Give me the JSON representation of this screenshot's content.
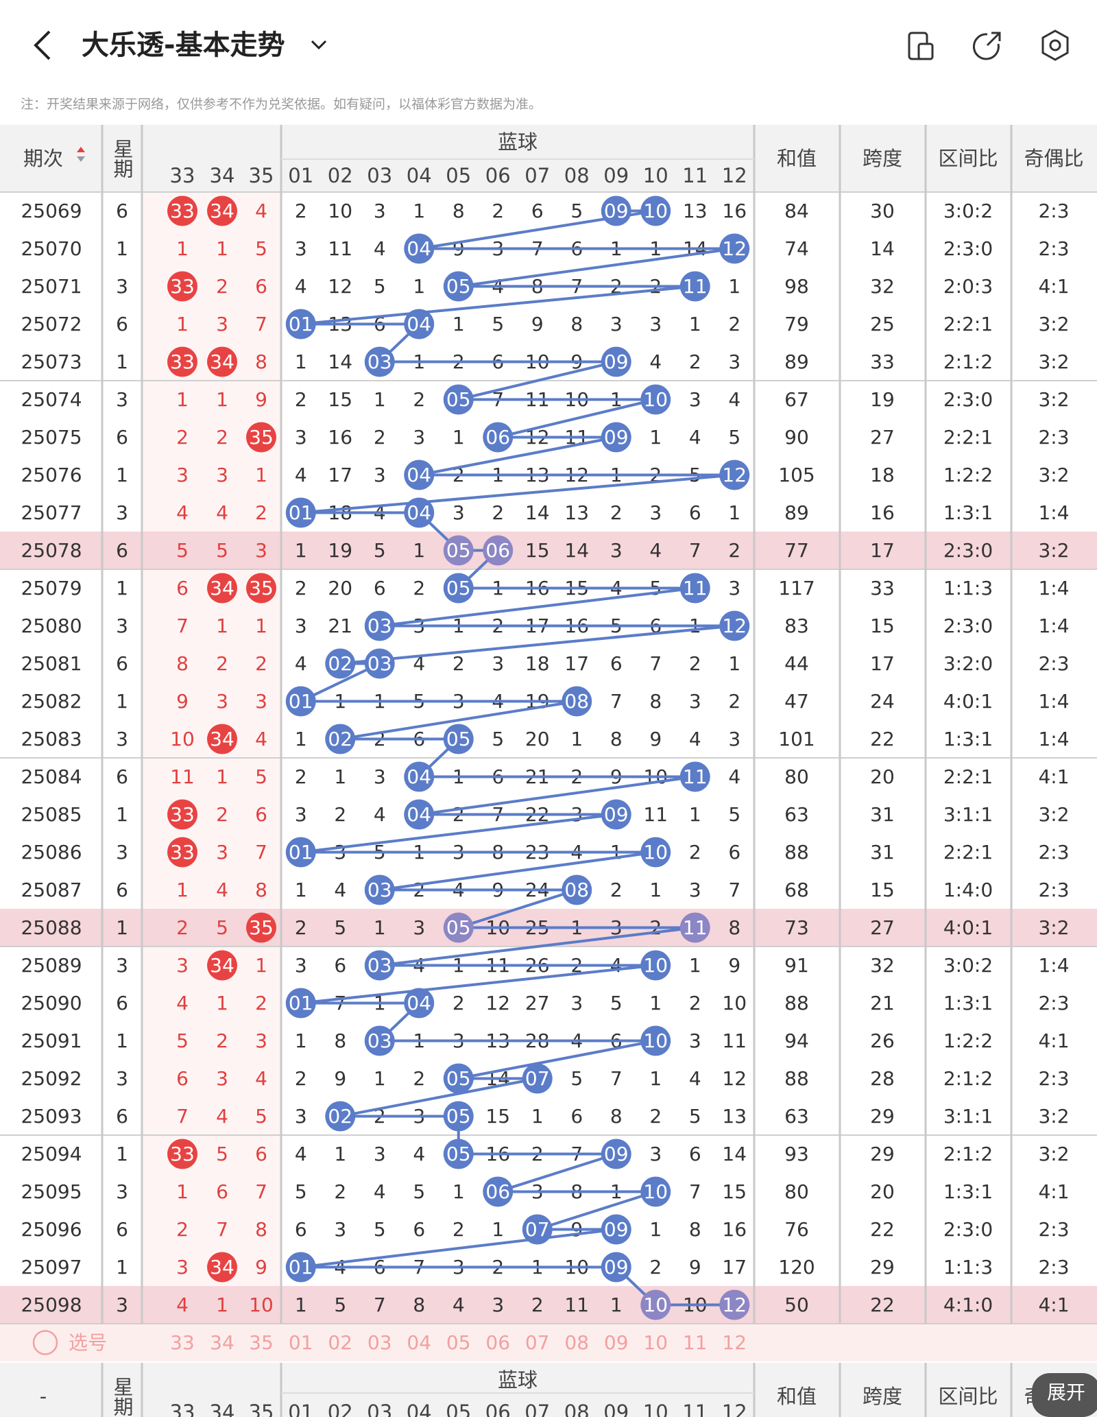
{
  "topbar": {
    "title": "大乐透-基本走势"
  },
  "note": "注：开奖结果来源于网络，仅供参考不作为兑奖依据。如有疑问，以福体彩官方数据为准。",
  "table": {
    "header": {
      "issue": "期次",
      "weekday": "星期",
      "blue_group": "蓝球",
      "red_cols": [
        "33",
        "34",
        "35"
      ],
      "blue_cols": [
        "01",
        "02",
        "03",
        "04",
        "05",
        "06",
        "07",
        "08",
        "09",
        "10",
        "11",
        "12"
      ],
      "sum": "和值",
      "span": "跨度",
      "zone": "区间比",
      "oddeven": "奇偶比"
    },
    "rows": [
      {
        "i": "25069",
        "w": 6,
        "r": [
          null,
          null,
          4
        ],
        "rd": [
          "33",
          "34"
        ],
        "b": [
          2,
          10,
          3,
          1,
          8,
          2,
          6,
          5,
          null,
          null,
          13,
          16
        ],
        "bd": [
          "09",
          "10"
        ],
        "s": 84,
        "sp": 30,
        "z": "3:0:2",
        "o": "2:3"
      },
      {
        "i": "25070",
        "w": 1,
        "r": [
          1,
          1,
          5
        ],
        "rd": [],
        "b": [
          3,
          11,
          4,
          null,
          9,
          3,
          7,
          6,
          1,
          1,
          14,
          null
        ],
        "bd": [
          "04",
          "12"
        ],
        "s": 74,
        "sp": 14,
        "z": "2:3:0",
        "o": "2:3"
      },
      {
        "i": "25071",
        "w": 3,
        "r": [
          null,
          2,
          6
        ],
        "rd": [
          "33"
        ],
        "b": [
          4,
          12,
          5,
          1,
          null,
          4,
          8,
          7,
          2,
          2,
          null,
          1
        ],
        "bd": [
          "05",
          "11"
        ],
        "s": 98,
        "sp": 32,
        "z": "2:0:3",
        "o": "4:1"
      },
      {
        "i": "25072",
        "w": 6,
        "r": [
          1,
          3,
          7
        ],
        "rd": [],
        "b": [
          null,
          13,
          6,
          null,
          1,
          5,
          9,
          8,
          3,
          3,
          1,
          2
        ],
        "bd": [
          "01",
          "04"
        ],
        "s": 79,
        "sp": 25,
        "z": "2:2:1",
        "o": "3:2"
      },
      {
        "i": "25073",
        "w": 1,
        "r": [
          null,
          null,
          8
        ],
        "rd": [
          "33",
          "34"
        ],
        "b": [
          1,
          14,
          null,
          1,
          2,
          6,
          10,
          9,
          null,
          4,
          2,
          3
        ],
        "bd": [
          "03",
          "09"
        ],
        "s": 89,
        "sp": 33,
        "z": "2:1:2",
        "o": "3:2"
      },
      {
        "i": "25074",
        "w": 3,
        "r": [
          1,
          1,
          9
        ],
        "rd": [],
        "b": [
          2,
          15,
          1,
          2,
          null,
          7,
          11,
          10,
          1,
          null,
          3,
          4
        ],
        "bd": [
          "05",
          "10"
        ],
        "s": 67,
        "sp": 19,
        "z": "2:3:0",
        "o": "3:2"
      },
      {
        "i": "25075",
        "w": 6,
        "r": [
          2,
          2,
          null
        ],
        "rd": [
          "35"
        ],
        "b": [
          3,
          16,
          2,
          3,
          1,
          null,
          12,
          11,
          null,
          1,
          4,
          5
        ],
        "bd": [
          "06",
          "09"
        ],
        "s": 90,
        "sp": 27,
        "z": "2:2:1",
        "o": "2:3"
      },
      {
        "i": "25076",
        "w": 1,
        "r": [
          3,
          3,
          1
        ],
        "rd": [],
        "b": [
          4,
          17,
          3,
          null,
          2,
          1,
          13,
          12,
          1,
          2,
          5,
          null
        ],
        "bd": [
          "04",
          "12"
        ],
        "s": 105,
        "sp": 18,
        "z": "1:2:2",
        "o": "3:2"
      },
      {
        "i": "25077",
        "w": 3,
        "r": [
          4,
          4,
          2
        ],
        "rd": [],
        "b": [
          null,
          18,
          4,
          null,
          3,
          2,
          14,
          13,
          2,
          3,
          6,
          1
        ],
        "bd": [
          "01",
          "04"
        ],
        "s": 89,
        "sp": 16,
        "z": "1:3:1",
        "o": "1:4"
      },
      {
        "i": "25078",
        "w": 6,
        "r": [
          5,
          5,
          3
        ],
        "rd": [],
        "b": [
          1,
          19,
          5,
          1,
          null,
          null,
          15,
          14,
          3,
          4,
          7,
          2
        ],
        "bd": [
          "05",
          "06"
        ],
        "s": 77,
        "sp": 17,
        "z": "2:3:0",
        "o": "3:2"
      },
      {
        "i": "25079",
        "w": 1,
        "r": [
          6,
          null,
          null
        ],
        "rd": [
          "34",
          "35"
        ],
        "b": [
          2,
          20,
          6,
          2,
          null,
          1,
          16,
          15,
          4,
          5,
          null,
          3
        ],
        "bd": [
          "05",
          "11"
        ],
        "s": 117,
        "sp": 33,
        "z": "1:1:3",
        "o": "1:4"
      },
      {
        "i": "25080",
        "w": 3,
        "r": [
          7,
          1,
          1
        ],
        "rd": [],
        "b": [
          3,
          21,
          null,
          3,
          1,
          2,
          17,
          16,
          5,
          6,
          1,
          null
        ],
        "bd": [
          "03",
          "12"
        ],
        "s": 83,
        "sp": 15,
        "z": "2:3:0",
        "o": "1:4"
      },
      {
        "i": "25081",
        "w": 6,
        "r": [
          8,
          2,
          2
        ],
        "rd": [],
        "b": [
          4,
          null,
          null,
          4,
          2,
          3,
          18,
          17,
          6,
          7,
          2,
          1
        ],
        "bd": [
          "02",
          "03"
        ],
        "s": 44,
        "sp": 17,
        "z": "3:2:0",
        "o": "2:3"
      },
      {
        "i": "25082",
        "w": 1,
        "r": [
          9,
          3,
          3
        ],
        "rd": [],
        "b": [
          null,
          1,
          1,
          5,
          3,
          4,
          19,
          null,
          7,
          8,
          3,
          2
        ],
        "bd": [
          "01",
          "08"
        ],
        "s": 47,
        "sp": 24,
        "z": "4:0:1",
        "o": "1:4"
      },
      {
        "i": "25083",
        "w": 3,
        "r": [
          10,
          null,
          4
        ],
        "rd": [
          "34"
        ],
        "b": [
          1,
          null,
          2,
          6,
          null,
          5,
          20,
          1,
          8,
          9,
          4,
          3
        ],
        "bd": [
          "02",
          "05"
        ],
        "s": 101,
        "sp": 22,
        "z": "1:3:1",
        "o": "1:4"
      },
      {
        "i": "25084",
        "w": 6,
        "r": [
          11,
          1,
          5
        ],
        "rd": [],
        "b": [
          2,
          1,
          3,
          null,
          1,
          6,
          21,
          2,
          9,
          10,
          null,
          4
        ],
        "bd": [
          "04",
          "11"
        ],
        "s": 80,
        "sp": 20,
        "z": "2:2:1",
        "o": "4:1"
      },
      {
        "i": "25085",
        "w": 1,
        "r": [
          null,
          2,
          6
        ],
        "rd": [
          "33"
        ],
        "b": [
          3,
          2,
          4,
          null,
          2,
          7,
          22,
          3,
          null,
          11,
          1,
          5
        ],
        "bd": [
          "04",
          "09"
        ],
        "s": 63,
        "sp": 31,
        "z": "3:1:1",
        "o": "3:2"
      },
      {
        "i": "25086",
        "w": 3,
        "r": [
          null,
          3,
          7
        ],
        "rd": [
          "33"
        ],
        "b": [
          null,
          3,
          5,
          1,
          3,
          8,
          23,
          4,
          1,
          null,
          2,
          6
        ],
        "bd": [
          "01",
          "10"
        ],
        "s": 88,
        "sp": 31,
        "z": "2:2:1",
        "o": "2:3"
      },
      {
        "i": "25087",
        "w": 6,
        "r": [
          1,
          4,
          8
        ],
        "rd": [],
        "b": [
          1,
          4,
          null,
          2,
          4,
          9,
          24,
          null,
          2,
          1,
          3,
          7
        ],
        "bd": [
          "03",
          "08"
        ],
        "s": 68,
        "sp": 15,
        "z": "1:4:0",
        "o": "2:3"
      },
      {
        "i": "25088",
        "w": 1,
        "r": [
          2,
          5,
          null
        ],
        "rd": [
          "35"
        ],
        "b": [
          2,
          5,
          1,
          3,
          null,
          10,
          25,
          1,
          3,
          2,
          null,
          8
        ],
        "bd": [
          "05",
          "11"
        ],
        "s": 73,
        "sp": 27,
        "z": "4:0:1",
        "o": "3:2"
      },
      {
        "i": "25089",
        "w": 3,
        "r": [
          3,
          null,
          1
        ],
        "rd": [
          "34"
        ],
        "b": [
          3,
          6,
          null,
          4,
          1,
          11,
          26,
          2,
          4,
          null,
          1,
          9
        ],
        "bd": [
          "03",
          "10"
        ],
        "s": 91,
        "sp": 32,
        "z": "3:0:2",
        "o": "1:4"
      },
      {
        "i": "25090",
        "w": 6,
        "r": [
          4,
          1,
          2
        ],
        "rd": [],
        "b": [
          null,
          7,
          1,
          null,
          2,
          12,
          27,
          3,
          5,
          1,
          2,
          10
        ],
        "bd": [
          "01",
          "04"
        ],
        "s": 88,
        "sp": 21,
        "z": "1:3:1",
        "o": "2:3"
      },
      {
        "i": "25091",
        "w": 1,
        "r": [
          5,
          2,
          3
        ],
        "rd": [],
        "b": [
          1,
          8,
          null,
          1,
          3,
          13,
          28,
          4,
          6,
          null,
          3,
          11
        ],
        "bd": [
          "03",
          "10"
        ],
        "s": 94,
        "sp": 26,
        "z": "1:2:2",
        "o": "4:1"
      },
      {
        "i": "25092",
        "w": 3,
        "r": [
          6,
          3,
          4
        ],
        "rd": [],
        "b": [
          2,
          9,
          1,
          2,
          null,
          14,
          null,
          5,
          7,
          1,
          4,
          12
        ],
        "bd": [
          "05",
          "07"
        ],
        "s": 88,
        "sp": 28,
        "z": "2:1:2",
        "o": "2:3"
      },
      {
        "i": "25093",
        "w": 6,
        "r": [
          7,
          4,
          5
        ],
        "rd": [],
        "b": [
          3,
          null,
          2,
          3,
          null,
          15,
          1,
          6,
          8,
          2,
          5,
          13
        ],
        "bd": [
          "02",
          "05"
        ],
        "s": 63,
        "sp": 29,
        "z": "3:1:1",
        "o": "3:2"
      },
      {
        "i": "25094",
        "w": 1,
        "r": [
          null,
          5,
          6
        ],
        "rd": [
          "33"
        ],
        "b": [
          4,
          1,
          3,
          4,
          null,
          16,
          2,
          7,
          null,
          3,
          6,
          14
        ],
        "bd": [
          "05",
          "09"
        ],
        "s": 93,
        "sp": 29,
        "z": "2:1:2",
        "o": "3:2"
      },
      {
        "i": "25095",
        "w": 3,
        "r": [
          1,
          6,
          7
        ],
        "rd": [],
        "b": [
          5,
          2,
          4,
          5,
          1,
          null,
          3,
          8,
          1,
          null,
          7,
          15
        ],
        "bd": [
          "06",
          "10"
        ],
        "s": 80,
        "sp": 20,
        "z": "1:3:1",
        "o": "4:1"
      },
      {
        "i": "25096",
        "w": 6,
        "r": [
          2,
          7,
          8
        ],
        "rd": [],
        "b": [
          6,
          3,
          5,
          6,
          2,
          1,
          null,
          9,
          null,
          1,
          8,
          16
        ],
        "bd": [
          "07",
          "09"
        ],
        "s": 76,
        "sp": 22,
        "z": "2:3:0",
        "o": "2:3"
      },
      {
        "i": "25097",
        "w": 1,
        "r": [
          3,
          null,
          9
        ],
        "rd": [
          "34"
        ],
        "b": [
          null,
          4,
          6,
          7,
          3,
          2,
          1,
          10,
          null,
          2,
          9,
          17
        ],
        "bd": [
          "01",
          "09"
        ],
        "s": 120,
        "sp": 29,
        "z": "1:1:3",
        "o": "2:3"
      },
      {
        "i": "25098",
        "w": 3,
        "r": [
          4,
          1,
          10
        ],
        "rd": [],
        "b": [
          1,
          5,
          7,
          8,
          4,
          3,
          2,
          11,
          1,
          null,
          10,
          null
        ],
        "bd": [
          "10",
          "12"
        ],
        "s": 50,
        "sp": 22,
        "z": "4:1:0",
        "o": "4:1"
      }
    ],
    "select_label": "选号",
    "footer_issue": "-"
  },
  "expand_button": "展开"
}
